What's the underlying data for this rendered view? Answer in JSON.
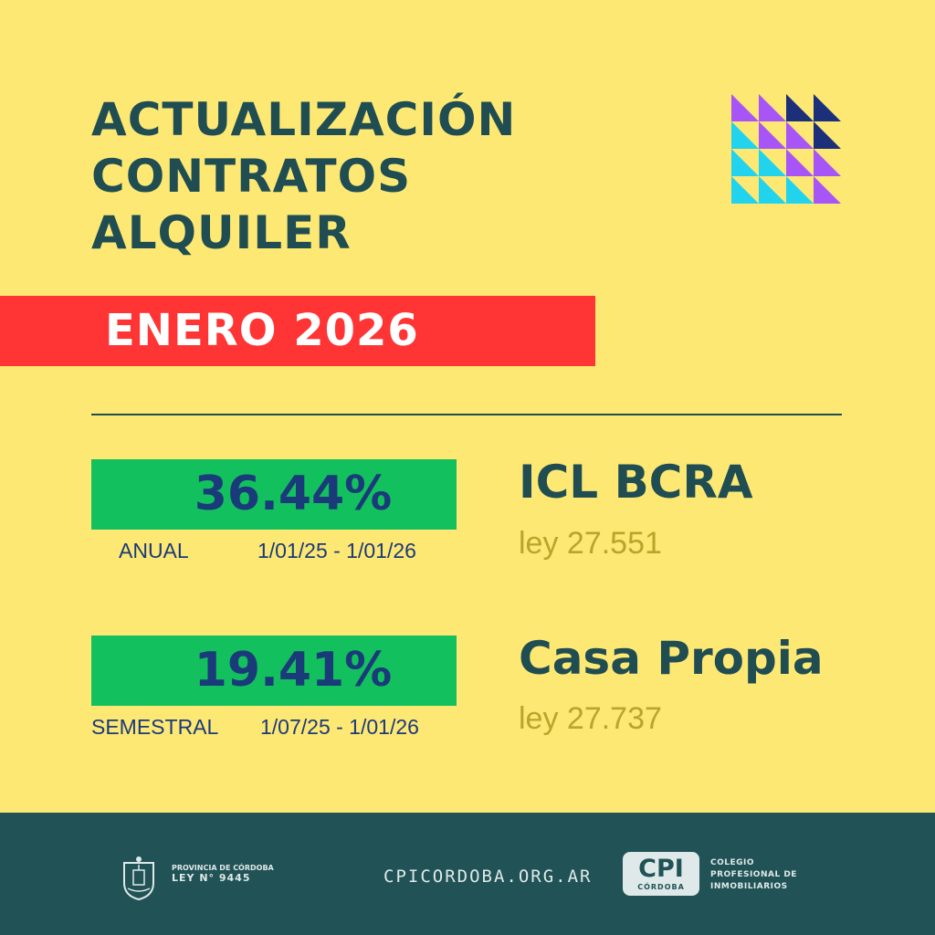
{
  "header": {
    "title_lines": [
      "ACTUALIZACIÓN",
      "CONTRATOS",
      "ALQUILER"
    ],
    "month_label": "ENERO 2026"
  },
  "indices": [
    {
      "percentage": "36.44%",
      "period_type": "ANUAL",
      "date_range": "1/01/25 - 1/01/26",
      "name": "ICL  BCRA",
      "law": "ley 27.551"
    },
    {
      "percentage": "19.41%",
      "period_type": "SEMESTRAL",
      "date_range": "1/07/25 - 1/01/26",
      "name": "Casa Propia",
      "law": "ley 27.737"
    }
  ],
  "footer": {
    "province_line": "PROVINCIA DE CÓRDOBA",
    "province_law": "LEY N° 9445",
    "website": "CPICORDOBA.ORG.AR",
    "logo_big": "CPI",
    "logo_small": "CÓRDOBA",
    "college_lines": [
      "COLEGIO",
      "PROFESIONAL DE",
      "INMOBILIARIOS"
    ]
  },
  "colors": {
    "background": "#fde874",
    "accent_red": "#ff3535",
    "accent_green": "#12c15d",
    "dark_teal": "#1f4d52",
    "navy": "#1b3a7a",
    "olive": "#b8a62b"
  },
  "icons": [
    "geometric-mosaic-icon",
    "province-seal-icon"
  ]
}
